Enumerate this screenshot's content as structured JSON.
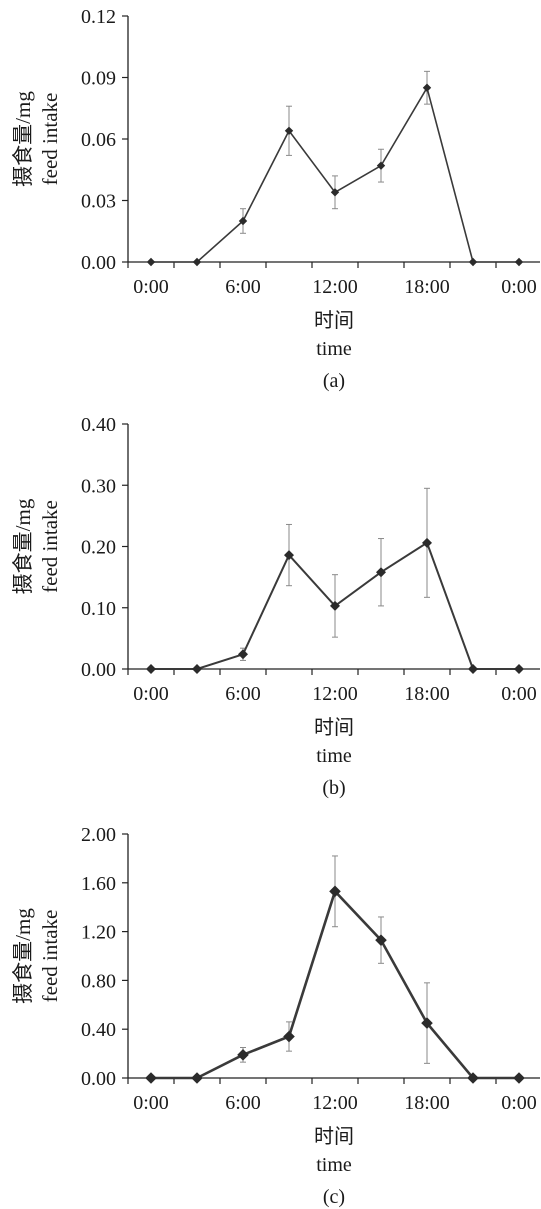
{
  "figure_title": "",
  "colors": {
    "line": "#3a3a3a",
    "marker": "#2b2b2b",
    "axis": "#222222",
    "errorbar": "#8a8a8a"
  },
  "chart_data": [
    {
      "type": "line",
      "panel_label": "(a)",
      "x": [
        "0:00",
        "3:00",
        "6:00",
        "9:00",
        "12:00",
        "15:00",
        "18:00",
        "21:00",
        "24:00"
      ],
      "xticks": [
        "0:00",
        "6:00",
        "12:00",
        "18:00",
        "0:00"
      ],
      "xlabel_cn": "时间",
      "xlabel_en": "time",
      "ylabel_cn": "摄食量/mg",
      "ylabel_en": "feed intake",
      "ylim": [
        0,
        0.12
      ],
      "yticks": [
        "0.00",
        "0.03",
        "0.06",
        "0.09",
        "0.12"
      ],
      "series": [
        {
          "values": [
            0,
            0,
            0.02,
            0.064,
            0.034,
            0.047,
            0.085,
            0,
            0
          ],
          "errors": [
            0,
            0,
            0.006,
            0.012,
            0.008,
            0.008,
            0.008,
            0,
            0
          ]
        }
      ],
      "grid": false,
      "legend": "none"
    },
    {
      "type": "line",
      "panel_label": "(b)",
      "x": [
        "0:00",
        "3:00",
        "6:00",
        "9:00",
        "12:00",
        "15:00",
        "18:00",
        "21:00",
        "24:00"
      ],
      "xticks": [
        "0:00",
        "6:00",
        "12:00",
        "18:00",
        "0:00"
      ],
      "xlabel_cn": "时间",
      "xlabel_en": "time",
      "ylabel_cn": "摄食量/mg",
      "ylabel_en": "feed intake",
      "ylim": [
        0,
        0.4
      ],
      "yticks": [
        "0.00",
        "0.10",
        "0.20",
        "0.30",
        "0.40"
      ],
      "series": [
        {
          "values": [
            0,
            0,
            0.024,
            0.186,
            0.103,
            0.158,
            0.206,
            0,
            0
          ],
          "errors": [
            0,
            0,
            0.01,
            0.05,
            0.051,
            0.055,
            0.089,
            0,
            0
          ]
        }
      ],
      "grid": false,
      "legend": "none"
    },
    {
      "type": "line",
      "panel_label": "(c)",
      "x": [
        "0:00",
        "3:00",
        "6:00",
        "9:00",
        "12:00",
        "15:00",
        "18:00",
        "21:00",
        "24:00"
      ],
      "xticks": [
        "0:00",
        "6:00",
        "12:00",
        "18:00",
        "0:00"
      ],
      "xlabel_cn": "时间",
      "xlabel_en": "time",
      "ylabel_cn": "摄食量/mg",
      "ylabel_en": "feed intake",
      "ylim": [
        0,
        2.0
      ],
      "yticks": [
        "0.00",
        "0.40",
        "0.80",
        "1.20",
        "1.60",
        "2.00"
      ],
      "series": [
        {
          "values": [
            0,
            0,
            0.19,
            0.34,
            1.53,
            1.13,
            0.45,
            0,
            0
          ],
          "errors": [
            0,
            0,
            0.06,
            0.12,
            0.29,
            0.19,
            0.33,
            0,
            0
          ]
        }
      ],
      "grid": false,
      "legend": "none"
    }
  ]
}
